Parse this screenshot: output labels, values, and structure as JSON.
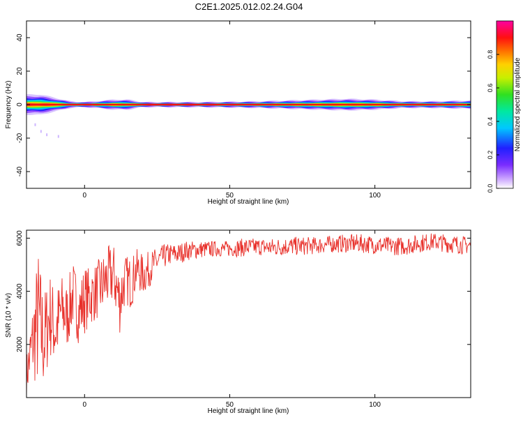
{
  "title": "C2E1.2025.012.02.24.G04",
  "colors": {
    "snr_line": "#e8302a",
    "spectrum_band": "#e52a2a",
    "background": "#ffffff",
    "axes": "#000000"
  },
  "chart_data": [
    {
      "type": "heatmap",
      "title": "C2E1.2025.012.02.24.G04",
      "xlabel": "Height of straight line (km)",
      "ylabel": "Frequency (Hz)",
      "xlim": [
        -20,
        133
      ],
      "ylim": [
        -50,
        50
      ],
      "x_ticks": [
        0,
        50,
        100
      ],
      "y_ticks": [
        -40,
        -20,
        0,
        20,
        40
      ],
      "colorbar": {
        "label": "Normalized spectral amplitude",
        "range": [
          0,
          1
        ],
        "ticks": [
          0.0,
          0.2,
          0.4,
          0.6,
          0.8
        ],
        "colormap": "rainbow (violet → blue → cyan → green → yellow → orange → red → magenta)"
      },
      "band_center_hz": 0,
      "peak_region_x": [
        -20,
        133
      ],
      "description_of_band_width": "energy concentrated near 0 Hz with spread up to about ±8 Hz at heights -20 to -10 km, narrow elsewhere",
      "band_halfwidth_profile": {
        "x": [
          -20,
          -15,
          -10,
          -5,
          0,
          10,
          15,
          20,
          40,
          60,
          80,
          90,
          100,
          110,
          120,
          133
        ],
        "halfwidth_hz": [
          6,
          6,
          4,
          2,
          1.5,
          3,
          3,
          1.5,
          1.5,
          2,
          3,
          3.5,
          3,
          2,
          2,
          2.5
        ]
      },
      "scatter_below": [
        {
          "x": -17,
          "y": -12
        },
        {
          "x": -15,
          "y": -16
        },
        {
          "x": -13,
          "y": -18
        },
        {
          "x": -9,
          "y": -19
        }
      ]
    },
    {
      "type": "line",
      "xlabel": "Height of straight line (km)",
      "ylabel": "SNR (10 * v/v)",
      "xlim": [
        -20,
        133
      ],
      "ylim": [
        0,
        6300
      ],
      "x_ticks": [
        0,
        50,
        100
      ],
      "y_ticks": [
        2000,
        4000,
        6000
      ],
      "series": [
        {
          "values_description": "noisy SNR trace",
          "x": [
            -20,
            -18,
            -16,
            -14,
            -12,
            -10,
            -8,
            -6,
            -4,
            -2,
            0,
            2,
            4,
            6,
            8,
            10,
            12,
            14,
            16,
            18,
            20,
            22,
            24,
            26,
            28,
            30,
            32,
            35,
            40,
            45,
            50,
            55,
            60,
            65,
            70,
            75,
            80,
            85,
            90,
            95,
            100,
            105,
            110,
            115,
            120,
            125,
            130,
            133
          ],
          "y": [
            800,
            1800,
            3000,
            2000,
            3400,
            2500,
            3200,
            3000,
            3800,
            3200,
            3600,
            3800,
            4000,
            4200,
            4600,
            4700,
            3800,
            4500,
            4200,
            4800,
            4600,
            4800,
            5000,
            5200,
            5300,
            5400,
            5400,
            5500,
            5550,
            5600,
            5600,
            5650,
            5700,
            5650,
            5700,
            5700,
            5750,
            5800,
            5800,
            5850,
            5750,
            5700,
            5650,
            5800,
            5900,
            5800,
            5750,
            5700
          ],
          "upper_envelope": [
            1600,
            3500,
            5700,
            4000,
            4800,
            4000,
            4700,
            4300,
            5200,
            4400,
            5000,
            4900,
            5100,
            5400,
            5700,
            5800,
            5000,
            5400,
            5300,
            5600,
            5400,
            5500,
            5600,
            5700,
            5800,
            5800,
            5800,
            5900,
            5900,
            5900,
            5900,
            6000,
            6000,
            6000,
            6050,
            6050,
            6050,
            6100,
            6150,
            6150,
            6100,
            6050,
            6050,
            6150,
            6200,
            6150,
            6100,
            6050
          ],
          "lower_envelope": [
            0,
            600,
            200,
            200,
            1500,
            1000,
            1900,
            1800,
            2600,
            2000,
            2400,
            2700,
            2900,
            3000,
            3300,
            3500,
            2300,
            3500,
            3300,
            4100,
            3800,
            4100,
            4500,
            4700,
            4900,
            5000,
            5000,
            5150,
            5250,
            5300,
            5300,
            5300,
            5350,
            5300,
            5350,
            5350,
            5400,
            5450,
            5450,
            5450,
            5400,
            5350,
            5350,
            5450,
            5550,
            5450,
            5400,
            5400
          ]
        }
      ]
    }
  ]
}
